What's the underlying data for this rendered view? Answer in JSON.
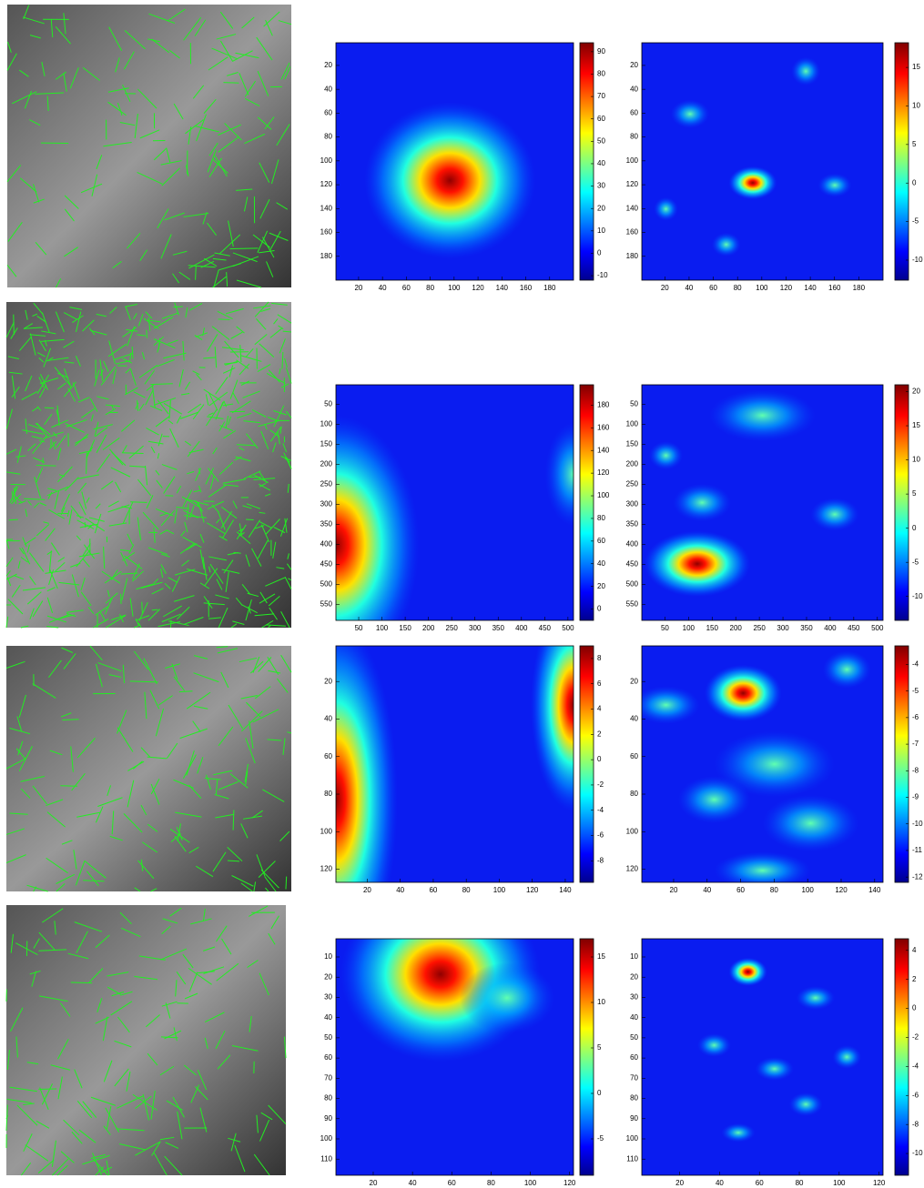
{
  "figure": {
    "rows": [
      {
        "panels": [
          {
            "xlim": [
              1,
              200
            ],
            "ylim": [
              1,
              200
            ],
            "xticks": [
              20,
              40,
              60,
              80,
              100,
              120,
              140,
              160,
              180
            ],
            "yticks": [
              20,
              40,
              60,
              80,
              100,
              120,
              140,
              160,
              180
            ],
            "clim": [
              -12,
              94
            ],
            "cticks": [
              -10,
              0,
              10,
              20,
              30,
              40,
              50,
              60,
              70,
              80,
              90
            ]
          },
          {
            "xlim": [
              1,
              200
            ],
            "ylim": [
              1,
              200
            ],
            "xticks": [
              20,
              40,
              60,
              80,
              100,
              120,
              140,
              160,
              180
            ],
            "yticks": [
              20,
              40,
              60,
              80,
              100,
              120,
              140,
              160,
              180
            ],
            "clim": [
              -12.6,
              18.2
            ],
            "cticks": [
              -10,
              -5,
              0,
              5,
              10,
              15
            ]
          }
        ]
      },
      {
        "panels": [
          {
            "xlim": [
              1,
              512
            ],
            "ylim": [
              1,
              590
            ],
            "xticks": [
              50,
              100,
              150,
              200,
              250,
              300,
              350,
              400,
              450,
              500
            ],
            "yticks": [
              50,
              100,
              150,
              200,
              250,
              300,
              350,
              400,
              450,
              500,
              550
            ],
            "clim": [
              -10,
              198
            ],
            "cticks": [
              0,
              20,
              40,
              60,
              80,
              100,
              120,
              140,
              160,
              180
            ]
          },
          {
            "xlim": [
              1,
              512
            ],
            "ylim": [
              1,
              590
            ],
            "xticks": [
              50,
              100,
              150,
              200,
              250,
              300,
              350,
              400,
              450,
              500
            ],
            "yticks": [
              50,
              100,
              150,
              200,
              250,
              300,
              350,
              400,
              450,
              500,
              550
            ],
            "clim": [
              -13.5,
              21
            ],
            "cticks": [
              -10,
              -5,
              0,
              5,
              10,
              15,
              20
            ]
          }
        ]
      },
      {
        "panels": [
          {
            "xlim": [
              1,
              145
            ],
            "ylim": [
              1,
              127
            ],
            "xticks": [
              20,
              40,
              60,
              80,
              100,
              120,
              140
            ],
            "yticks": [
              20,
              40,
              60,
              80,
              100,
              120
            ],
            "clim": [
              -9.7,
              9
            ],
            "cticks": [
              -8,
              -6,
              -4,
              -2,
              0,
              2,
              4,
              6,
              8
            ]
          },
          {
            "xlim": [
              1,
              145
            ],
            "ylim": [
              1,
              127
            ],
            "xticks": [
              20,
              40,
              60,
              80,
              100,
              120,
              140
            ],
            "yticks": [
              20,
              40,
              60,
              80,
              100,
              120
            ],
            "clim": [
              -12.2,
              -3.3
            ],
            "cticks": [
              -12,
              -11,
              -10,
              -9,
              -8,
              -7,
              -6,
              -5,
              -4
            ]
          }
        ]
      },
      {
        "panels": [
          {
            "xlim": [
              1,
              122
            ],
            "ylim": [
              1,
              118
            ],
            "xticks": [
              20,
              40,
              60,
              80,
              100,
              120
            ],
            "yticks": [
              10,
              20,
              30,
              40,
              50,
              60,
              70,
              80,
              90,
              100,
              110
            ],
            "clim": [
              -9,
              17
            ],
            "cticks": [
              -5,
              0,
              5,
              10,
              15
            ]
          },
          {
            "xlim": [
              1,
              122
            ],
            "ylim": [
              1,
              118
            ],
            "xticks": [
              20,
              40,
              60,
              80,
              100,
              120
            ],
            "yticks": [
              10,
              20,
              30,
              40,
              50,
              60,
              70,
              80,
              90,
              100,
              110
            ],
            "clim": [
              -11.5,
              4.8
            ],
            "cticks": [
              -10,
              -8,
              -6,
              -4,
              -2,
              0,
              2,
              4
            ]
          }
        ]
      }
    ]
  }
}
